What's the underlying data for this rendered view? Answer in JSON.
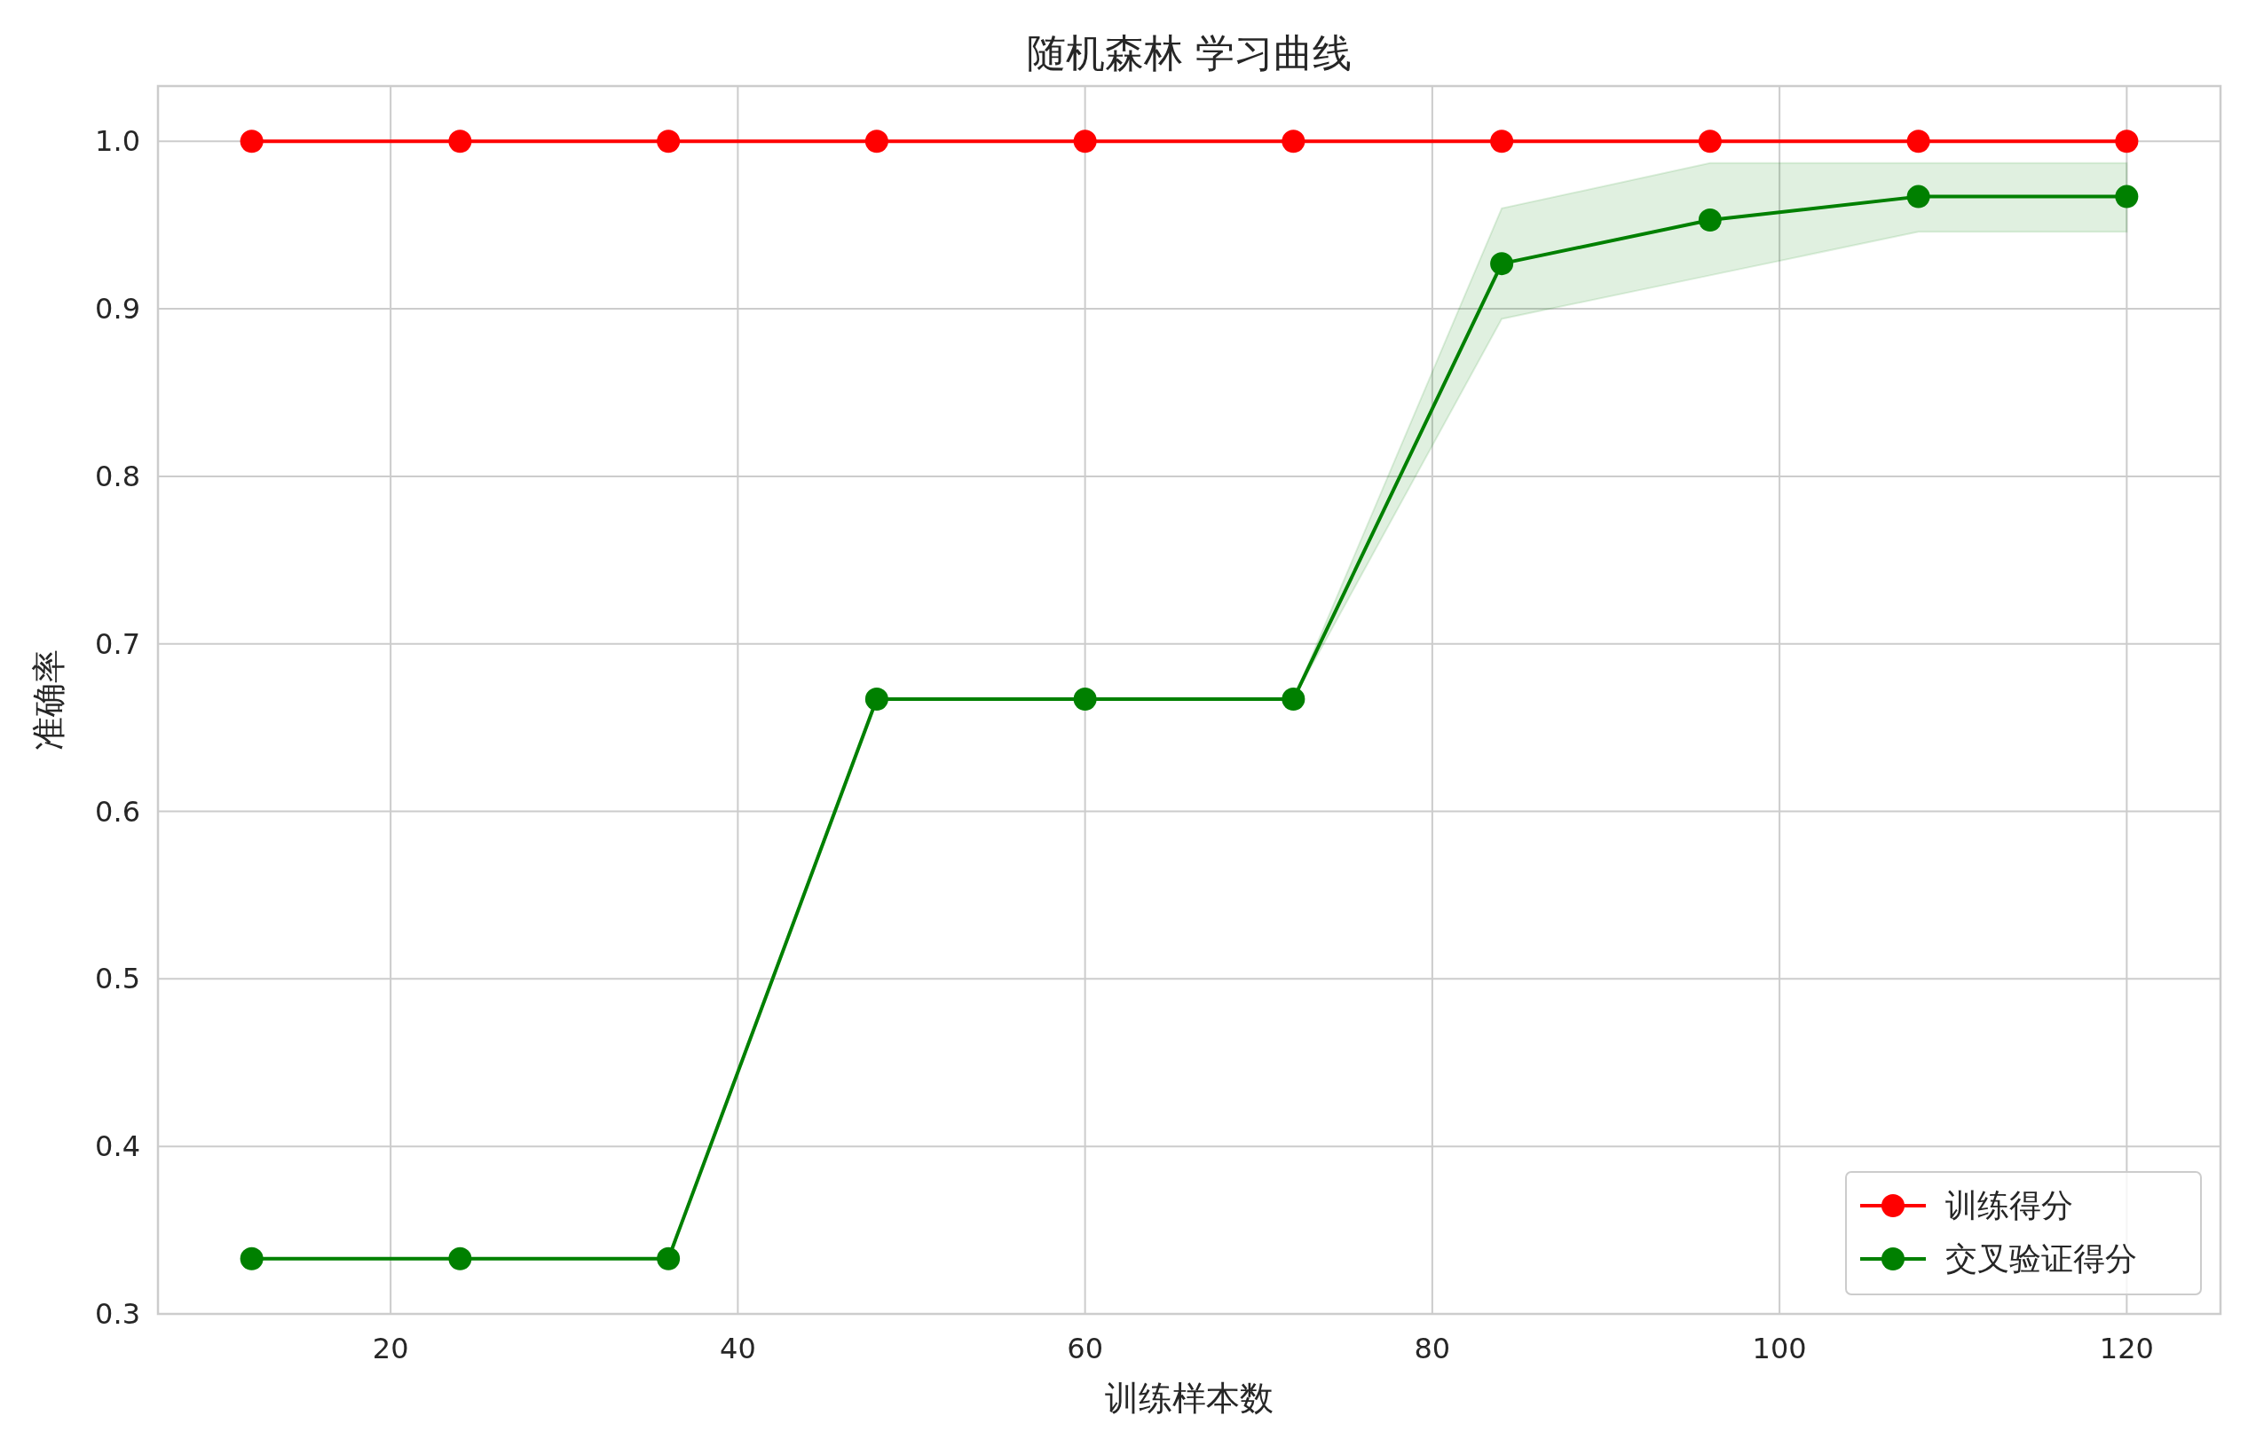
{
  "chart_data": {
    "type": "line",
    "title": "随机森林 学习曲线",
    "xlabel": "训练样本数",
    "ylabel": "准确率",
    "x": [
      12,
      24,
      36,
      48,
      60,
      72,
      84,
      96,
      108,
      120
    ],
    "series": [
      {
        "name": "训练得分",
        "color": "#ff0000",
        "values": [
          1.0,
          1.0,
          1.0,
          1.0,
          1.0,
          1.0,
          1.0,
          1.0,
          1.0,
          1.0
        ]
      },
      {
        "name": "交叉验证得分",
        "color": "#008000",
        "values": [
          0.333,
          0.333,
          0.333,
          0.667,
          0.667,
          0.667,
          0.927,
          0.953,
          0.967,
          0.967
        ],
        "lower": [
          0.333,
          0.333,
          0.333,
          0.667,
          0.667,
          0.667,
          0.894,
          0.92,
          0.946,
          0.946
        ],
        "upper": [
          0.333,
          0.333,
          0.333,
          0.667,
          0.667,
          0.667,
          0.96,
          0.987,
          0.987,
          0.987
        ]
      }
    ],
    "xlim": [
      6.6,
      125.4
    ],
    "ylim": [
      0.3,
      1.033
    ],
    "xticks": [
      20,
      40,
      60,
      80,
      100,
      120
    ],
    "yticks": [
      {
        "value": 0.3,
        "label": "0.3"
      },
      {
        "value": 0.4,
        "label": "0.4"
      },
      {
        "value": 0.5,
        "label": "0.5"
      },
      {
        "value": 0.6,
        "label": "0.6"
      },
      {
        "value": 0.7,
        "label": "0.7"
      },
      {
        "value": 0.8,
        "label": "0.8"
      },
      {
        "value": 0.9,
        "label": "0.9"
      },
      {
        "value": 1.0,
        "label": "1.0"
      }
    ],
    "grid": true,
    "legend": "bottom right",
    "marker": "circle",
    "line_style": "solid"
  }
}
